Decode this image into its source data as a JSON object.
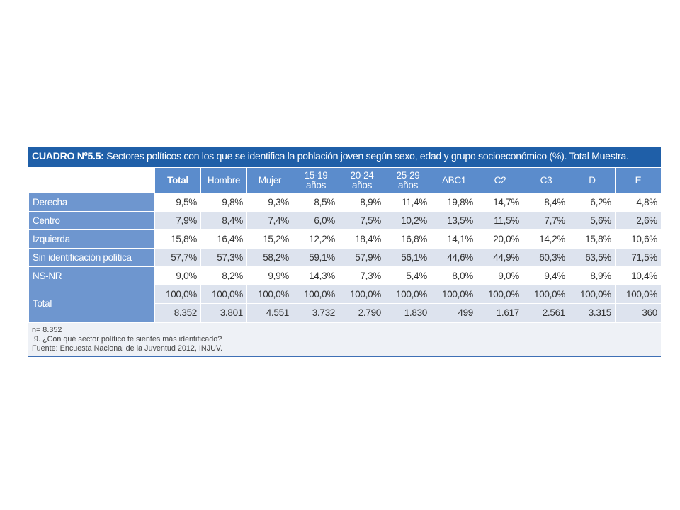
{
  "title": {
    "bold": "CUADRO Nº5.5:",
    "rest": " Sectores políticos con los que se identifica la población joven según sexo, edad y grupo socioeconómico (%). Total Muestra."
  },
  "chart_data": {
    "type": "table",
    "columns": [
      {
        "label": "Total",
        "bold": true
      },
      {
        "label": "Hombre"
      },
      {
        "label": "Mujer"
      },
      {
        "label": "15-19",
        "label2": "años"
      },
      {
        "label": "20-24",
        "label2": "años"
      },
      {
        "label": "25-29",
        "label2": "años"
      },
      {
        "label": "ABC1"
      },
      {
        "label": "C2"
      },
      {
        "label": "C3"
      },
      {
        "label": "D"
      },
      {
        "label": "E"
      }
    ],
    "rows": [
      {
        "label": "Derecha",
        "values": [
          "9,5%",
          "9,8%",
          "9,3%",
          "8,5%",
          "8,9%",
          "11,4%",
          "19,8%",
          "14,7%",
          "8,4%",
          "6,2%",
          "4,8%"
        ]
      },
      {
        "label": "Centro",
        "values": [
          "7,9%",
          "8,4%",
          "7,4%",
          "6,0%",
          "7,5%",
          "10,2%",
          "13,5%",
          "11,5%",
          "7,7%",
          "5,6%",
          "2,6%"
        ]
      },
      {
        "label": "Izquierda",
        "values": [
          "15,8%",
          "16,4%",
          "15,2%",
          "12,2%",
          "18,4%",
          "16,8%",
          "14,1%",
          "20,0%",
          "14,2%",
          "15,8%",
          "10,6%"
        ]
      },
      {
        "label": "Sin identificación política",
        "values": [
          "57,7%",
          "57,3%",
          "58,2%",
          "59,1%",
          "57,9%",
          "56,1%",
          "44,6%",
          "44,9%",
          "60,3%",
          "63,5%",
          "71,5%"
        ]
      },
      {
        "label": "NS-NR",
        "values": [
          "9,0%",
          "8,2%",
          "9,9%",
          "14,3%",
          "7,3%",
          "5,4%",
          "8,0%",
          "9,0%",
          "9,4%",
          "8,9%",
          "10,4%"
        ]
      }
    ],
    "total": {
      "label": "Total",
      "percent": [
        "100,0%",
        "100,0%",
        "100,0%",
        "100,0%",
        "100,0%",
        "100,0%",
        "100,0%",
        "100,0%",
        "100,0%",
        "100,0%",
        "100,0%"
      ],
      "counts": [
        "8.352",
        "3.801",
        "4.551",
        "3.732",
        "2.790",
        "1.830",
        "499",
        "1.617",
        "2.561",
        "3.315",
        "360"
      ]
    }
  },
  "notes": [
    "n= 8.352",
    "I9. ¿Con qué sector político te sientes más identificado?",
    "Fuente: Encuesta Nacional de la Juventud 2012, INJUV."
  ],
  "colors": {
    "title_bg": "#1f5fa8",
    "header_bg": "#5b8ccc",
    "rowlabel_bg": "#6e96cf",
    "stripe_bg": "#dde3ee"
  }
}
